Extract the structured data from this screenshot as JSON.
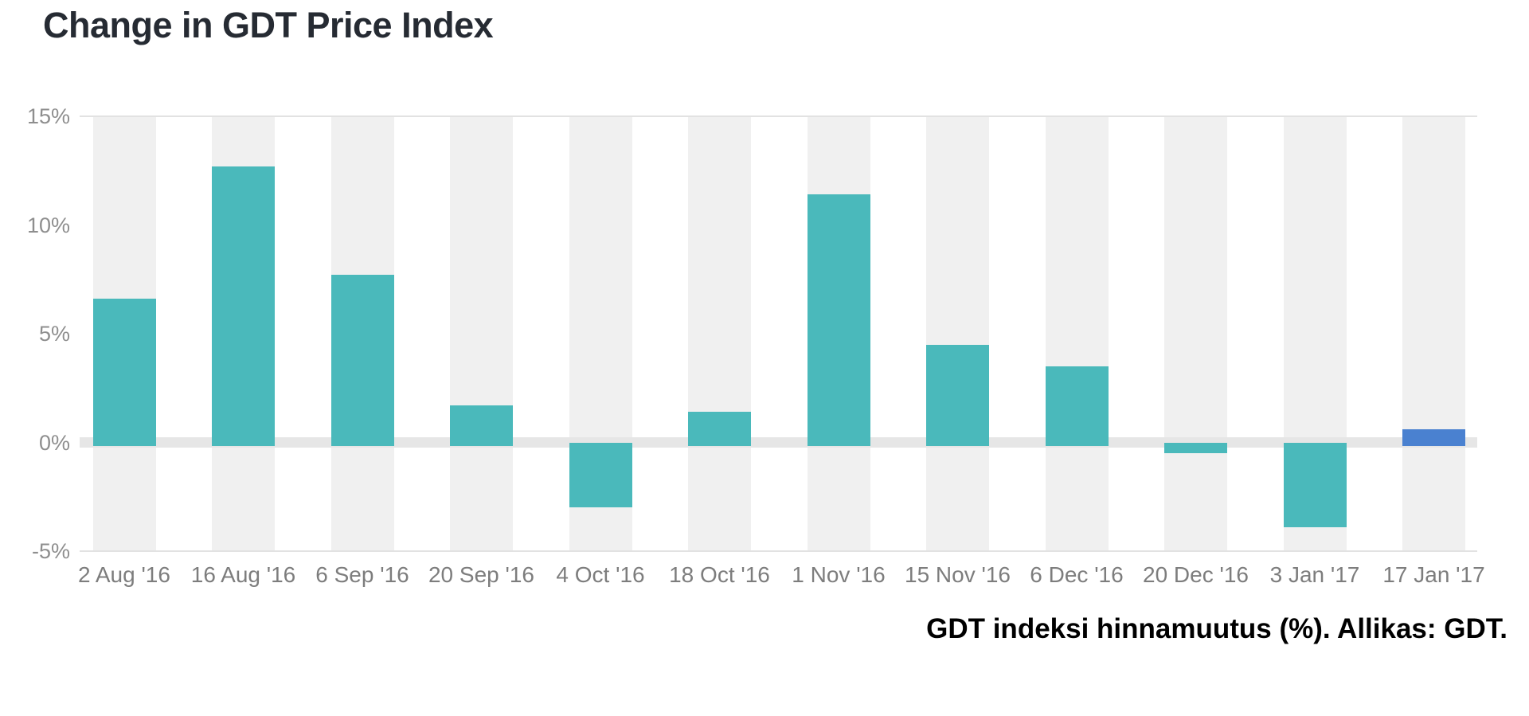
{
  "title": "Change in GDT Price Index",
  "caption": "GDT indeksi hinnamuutus (%). Allikas: GDT.",
  "chart_data": {
    "type": "bar",
    "title": "Change in GDT Price Index",
    "categories": [
      "2 Aug '16",
      "16 Aug '16",
      "6 Sep '16",
      "20 Sep '16",
      "4 Oct '16",
      "18 Oct '16",
      "1 Nov '16",
      "15 Nov '16",
      "6 Dec '16",
      "20 Dec '16",
      "3 Jan '17",
      "17 Jan '17"
    ],
    "values": [
      6.6,
      12.7,
      7.7,
      1.7,
      -3.0,
      1.4,
      11.4,
      4.5,
      3.5,
      -0.5,
      -3.9,
      0.6
    ],
    "xlabel": "",
    "ylabel": "",
    "ylim": [
      -5,
      15
    ],
    "yticks": [
      15,
      10,
      5,
      0,
      -5
    ],
    "ytick_labels": [
      "15%",
      "10%",
      "5%",
      "0%",
      "-5%"
    ],
    "legend": "none",
    "grid": "top, bottom and zero lines with vertical column bands",
    "bar_color": "#4ab9bb",
    "highlight_color": "#4a81d0",
    "highlight_index": 11,
    "band_color": "#f0f0f0",
    "zero_line_color": "#e6e6e6",
    "gridline_color": "#e2e2e2",
    "ytick_color": "#8e8e8e",
    "xtick_color": "#7d7d7d",
    "title_color": "#262b33",
    "caption_color": "#000000"
  }
}
